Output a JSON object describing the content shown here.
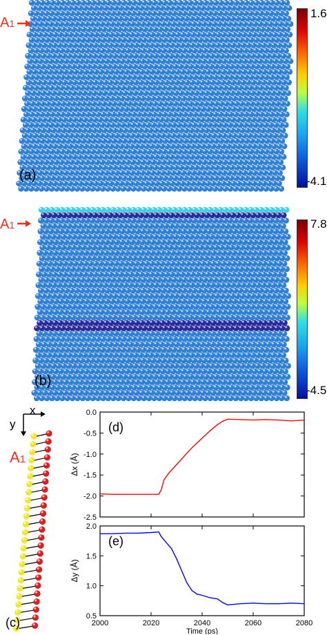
{
  "panel_a": {
    "label": "(a)",
    "marker": "A",
    "marker_sub": "1",
    "colorbar": {
      "max": "1.6",
      "min": "-4.1"
    }
  },
  "panel_b": {
    "label": "(b)",
    "marker": "A",
    "marker_sub": "1",
    "colorbar": {
      "max": "7.8",
      "min": "-4.5"
    }
  },
  "panel_c": {
    "label": "(c)",
    "axis_x": "x",
    "axis_y": "y",
    "marker": "A",
    "marker_sub": "1"
  },
  "colors": {
    "atom_base": "#2f7fd4",
    "atom_highlight_cyan": "#3fd0e6",
    "atom_highlight_dark": "#2a2a9a",
    "arrow": "#ff2a1a",
    "yellow_atom": "#f2e62a",
    "red_atom": "#d92020",
    "line_d": "#ff0000",
    "line_e": "#0000ff"
  },
  "chart_data": [
    {
      "type": "line",
      "label": "(d)",
      "ylabel": "Δx (Å)",
      "xlim": [
        2000,
        2080
      ],
      "ylim": [
        -2.5,
        0.0
      ],
      "yticks": [
        "0.0",
        "-0.5",
        "-1.0",
        "-1.5",
        "-2.0",
        "-2.5"
      ],
      "series": [
        {
          "x": [
            2000,
            2005,
            2010,
            2015,
            2020,
            2023,
            2024,
            2025,
            2027,
            2030,
            2033,
            2036,
            2040,
            2043,
            2046,
            2048,
            2050,
            2055,
            2060,
            2065,
            2070,
            2075,
            2080
          ],
          "y": [
            -1.95,
            -1.96,
            -1.96,
            -1.96,
            -1.96,
            -1.96,
            -1.85,
            -1.62,
            -1.45,
            -1.25,
            -1.05,
            -0.85,
            -0.62,
            -0.45,
            -0.3,
            -0.22,
            -0.17,
            -0.18,
            -0.19,
            -0.18,
            -0.19,
            -0.21,
            -0.19
          ]
        }
      ]
    },
    {
      "type": "line",
      "label": "(e)",
      "xlabel": "Time (ps)",
      "ylabel": "Δy (Å)",
      "xlim": [
        2000,
        2080
      ],
      "ylim": [
        0.5,
        2.0
      ],
      "xticks": [
        "2000",
        "2020",
        "2040",
        "2060",
        "2080"
      ],
      "yticks": [
        "2.0",
        "1.5",
        "1.0",
        "0.5"
      ],
      "series": [
        {
          "x": [
            2000,
            2005,
            2010,
            2015,
            2020,
            2023,
            2024,
            2026,
            2028,
            2030,
            2032,
            2034,
            2036,
            2038,
            2040,
            2043,
            2046,
            2048,
            2050,
            2055,
            2060,
            2065,
            2070,
            2075,
            2080
          ],
          "y": [
            1.87,
            1.87,
            1.88,
            1.88,
            1.89,
            1.9,
            1.82,
            1.72,
            1.62,
            1.45,
            1.25,
            1.05,
            0.92,
            0.86,
            0.84,
            0.8,
            0.78,
            0.72,
            0.68,
            0.7,
            0.71,
            0.7,
            0.7,
            0.71,
            0.7
          ]
        }
      ]
    }
  ]
}
